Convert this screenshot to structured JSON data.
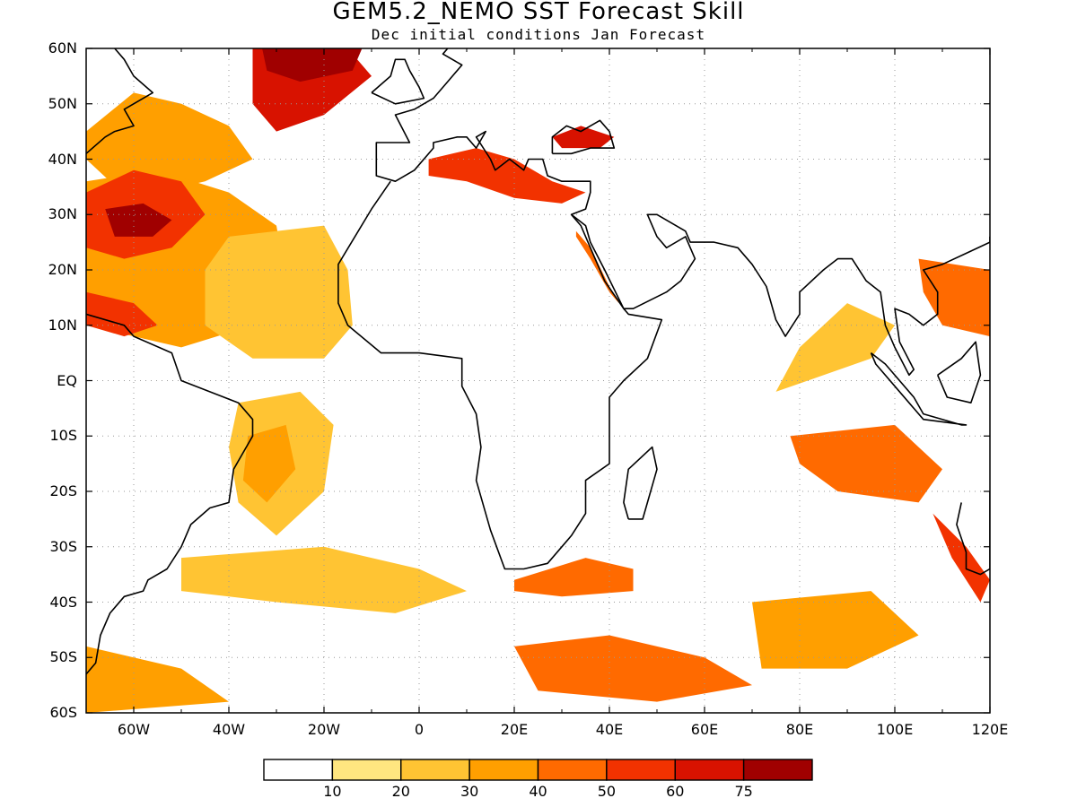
{
  "header": {
    "title": "GEM5.2_NEMO SST Forecast Skill",
    "subtitle": "Dec initial conditions  Jan Forecast"
  },
  "axes": {
    "lat_labels": [
      "60N",
      "50N",
      "40N",
      "30N",
      "20N",
      "10N",
      "EQ",
      "10S",
      "20S",
      "30S",
      "40S",
      "50S",
      "60S"
    ],
    "lon_labels": [
      "60W",
      "40W",
      "20W",
      "0",
      "20E",
      "40E",
      "60E",
      "80E",
      "100E",
      "120E"
    ],
    "lon_range": [
      -70,
      120
    ],
    "lat_range": [
      -60,
      60
    ]
  },
  "colorbar": {
    "levels": [
      "10",
      "20",
      "30",
      "40",
      "50",
      "60",
      "75"
    ],
    "colors": [
      "#ffffff",
      "#ffe680",
      "#ffc433",
      "#ff9f00",
      "#ff6a00",
      "#f23200",
      "#d81200",
      "#a00000"
    ]
  },
  "map_data": {
    "type": "filled-contour",
    "regions": [
      {
        "name": "Labrador Sea / NW Atlantic",
        "level": 3,
        "poly": [
          [
            -70,
            45
          ],
          [
            -60,
            52
          ],
          [
            -50,
            50
          ],
          [
            -40,
            46
          ],
          [
            -35,
            40
          ],
          [
            -45,
            36
          ],
          [
            -55,
            34
          ],
          [
            -65,
            36
          ],
          [
            -70,
            40
          ]
        ]
      },
      {
        "name": "Subtropical North Atlantic",
        "level": 3,
        "poly": [
          [
            -70,
            36
          ],
          [
            -55,
            38
          ],
          [
            -40,
            34
          ],
          [
            -30,
            28
          ],
          [
            -28,
            18
          ],
          [
            -35,
            10
          ],
          [
            -50,
            6
          ],
          [
            -60,
            8
          ],
          [
            -70,
            10
          ]
        ]
      },
      {
        "name": "Sargasso Sea core",
        "level": 5,
        "poly": [
          [
            -70,
            34
          ],
          [
            -60,
            38
          ],
          [
            -50,
            36
          ],
          [
            -45,
            30
          ],
          [
            -52,
            24
          ],
          [
            -62,
            22
          ],
          [
            -70,
            24
          ]
        ]
      },
      {
        "name": "Sargasso max",
        "level": 7,
        "poly": [
          [
            -66,
            31
          ],
          [
            -58,
            32
          ],
          [
            -52,
            29
          ],
          [
            -56,
            26
          ],
          [
            -64,
            26
          ]
        ]
      },
      {
        "name": "Northeast Atlantic",
        "level": 6,
        "poly": [
          [
            -35,
            60
          ],
          [
            -15,
            60
          ],
          [
            -10,
            55
          ],
          [
            -20,
            48
          ],
          [
            -30,
            45
          ],
          [
            -35,
            50
          ]
        ]
      },
      {
        "name": "Northeast Atlantic max",
        "level": 7,
        "poly": [
          [
            -33,
            60
          ],
          [
            -12,
            60
          ],
          [
            -14,
            56
          ],
          [
            -25,
            54
          ],
          [
            -32,
            56
          ]
        ]
      },
      {
        "name": "Tropical North Atlantic",
        "level": 2,
        "poly": [
          [
            -40,
            26
          ],
          [
            -20,
            28
          ],
          [
            -15,
            20
          ],
          [
            -14,
            10
          ],
          [
            -20,
            4
          ],
          [
            -35,
            4
          ],
          [
            -45,
            10
          ],
          [
            -45,
            20
          ]
        ]
      },
      {
        "name": "Caribbean",
        "level": 5,
        "poly": [
          [
            -70,
            16
          ],
          [
            -60,
            14
          ],
          [
            -55,
            10
          ],
          [
            -62,
            8
          ],
          [
            -70,
            10
          ]
        ]
      },
      {
        "name": "Mediterranean",
        "level": 5,
        "poly": [
          [
            2,
            40
          ],
          [
            12,
            42
          ],
          [
            20,
            40
          ],
          [
            28,
            36
          ],
          [
            35,
            34
          ],
          [
            30,
            32
          ],
          [
            20,
            33
          ],
          [
            10,
            36
          ],
          [
            2,
            37
          ]
        ]
      },
      {
        "name": "Black Sea",
        "level": 6,
        "poly": [
          [
            28,
            44
          ],
          [
            34,
            46
          ],
          [
            41,
            44
          ],
          [
            38,
            42
          ],
          [
            30,
            42
          ]
        ]
      },
      {
        "name": "Red Sea",
        "level": 4,
        "poly": [
          [
            33,
            27
          ],
          [
            36,
            24
          ],
          [
            40,
            17
          ],
          [
            42,
            14
          ],
          [
            40,
            16
          ],
          [
            36,
            22
          ],
          [
            33,
            26
          ]
        ]
      },
      {
        "name": "South Atlantic (Brazil margin)",
        "level": 2,
        "poly": [
          [
            -38,
            -4
          ],
          [
            -25,
            -2
          ],
          [
            -18,
            -8
          ],
          [
            -20,
            -20
          ],
          [
            -30,
            -28
          ],
          [
            -38,
            -22
          ],
          [
            -40,
            -12
          ]
        ]
      },
      {
        "name": "South Atlantic (Brazil core)",
        "level": 3,
        "poly": [
          [
            -36,
            -10
          ],
          [
            -28,
            -8
          ],
          [
            -26,
            -16
          ],
          [
            -32,
            -22
          ],
          [
            -37,
            -18
          ]
        ]
      },
      {
        "name": "Agulhas Return",
        "level": 4,
        "poly": [
          [
            20,
            -36
          ],
          [
            35,
            -32
          ],
          [
            45,
            -34
          ],
          [
            45,
            -38
          ],
          [
            30,
            -39
          ],
          [
            20,
            -38
          ]
        ]
      },
      {
        "name": "South Atlantic 30-40S",
        "level": 2,
        "poly": [
          [
            -50,
            -32
          ],
          [
            -20,
            -30
          ],
          [
            0,
            -34
          ],
          [
            10,
            -38
          ],
          [
            -5,
            -42
          ],
          [
            -30,
            -40
          ],
          [
            -50,
            -38
          ]
        ]
      },
      {
        "name": "Southern Ocean Atlantic",
        "level": 3,
        "poly": [
          [
            -70,
            -48
          ],
          [
            -50,
            -52
          ],
          [
            -40,
            -58
          ],
          [
            -70,
            -60
          ]
        ]
      },
      {
        "name": "Southern Ocean Indian",
        "level": 4,
        "poly": [
          [
            20,
            -48
          ],
          [
            40,
            -46
          ],
          [
            60,
            -50
          ],
          [
            70,
            -55
          ],
          [
            50,
            -58
          ],
          [
            25,
            -56
          ]
        ]
      },
      {
        "name": "Southern Ocean Indian east",
        "level": 3,
        "poly": [
          [
            70,
            -40
          ],
          [
            95,
            -38
          ],
          [
            105,
            -46
          ],
          [
            90,
            -52
          ],
          [
            72,
            -52
          ]
        ]
      },
      {
        "name": "Southeast Indian Ocean",
        "level": 4,
        "poly": [
          [
            78,
            -10
          ],
          [
            100,
            -8
          ],
          [
            110,
            -16
          ],
          [
            105,
            -22
          ],
          [
            88,
            -20
          ],
          [
            80,
            -15
          ]
        ]
      },
      {
        "name": "Australia west",
        "level": 5,
        "poly": [
          [
            108,
            -24
          ],
          [
            115,
            -30
          ],
          [
            120,
            -36
          ],
          [
            118,
            -40
          ],
          [
            112,
            -32
          ]
        ]
      },
      {
        "name": "Arabian Sea / Bay of Bengal",
        "level": 2,
        "poly": [
          [
            75,
            -2
          ],
          [
            95,
            4
          ],
          [
            100,
            10
          ],
          [
            90,
            14
          ],
          [
            80,
            6
          ]
        ]
      },
      {
        "name": "South China Sea",
        "level": 4,
        "poly": [
          [
            105,
            22
          ],
          [
            120,
            20
          ],
          [
            120,
            8
          ],
          [
            110,
            10
          ],
          [
            106,
            16
          ]
        ]
      }
    ]
  }
}
